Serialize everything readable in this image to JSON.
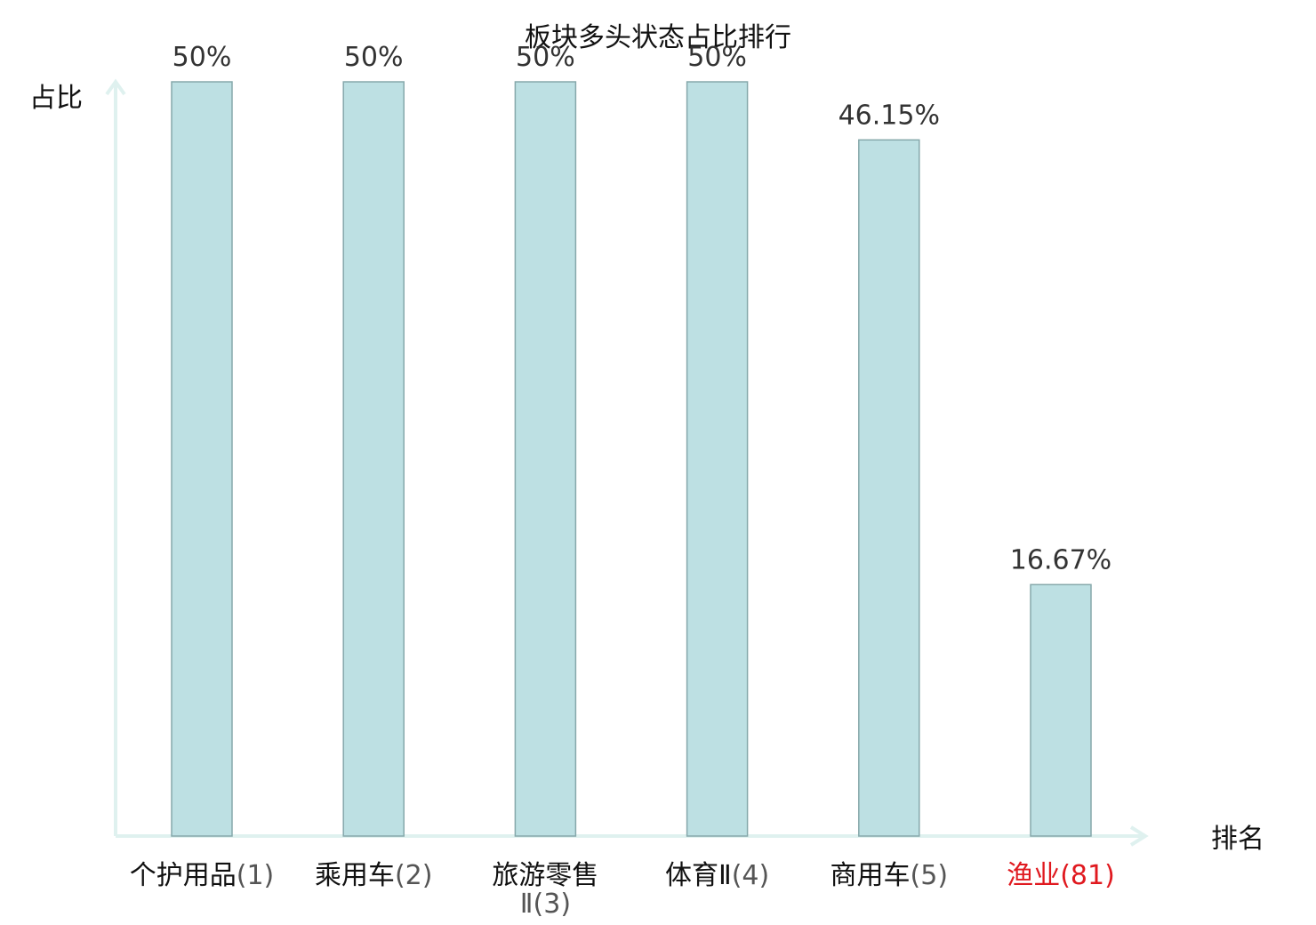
{
  "chart_data": {
    "type": "bar",
    "title": "板块多头状态占比排行",
    "xlabel": "排名",
    "ylabel": "占比",
    "ylim": [
      0,
      50
    ],
    "grid": false,
    "legend": "none",
    "categories": [
      {
        "name": "个护用品",
        "rank": "(1)"
      },
      {
        "name": "乘用车",
        "rank": "(2)"
      },
      {
        "name": "旅游零售Ⅱ",
        "rank": "(3)"
      },
      {
        "name": "体育Ⅱ",
        "rank": "(4)"
      },
      {
        "name": "商用车",
        "rank": "(5)"
      },
      {
        "name": "渔业",
        "rank": "(81)"
      }
    ],
    "values": [
      50,
      50,
      50,
      50,
      46.15,
      16.67
    ],
    "value_labels": [
      "50%",
      "50%",
      "50%",
      "50%",
      "46.15%",
      "16.67%"
    ],
    "highlighted_category_index": 5
  },
  "colors": {
    "bar_fill": "#bde0e3",
    "bar_stroke": "#86a8ab",
    "axis": "#dff1ef",
    "text": "#111111",
    "value_text": "#333333",
    "highlight": "#e0191f"
  }
}
